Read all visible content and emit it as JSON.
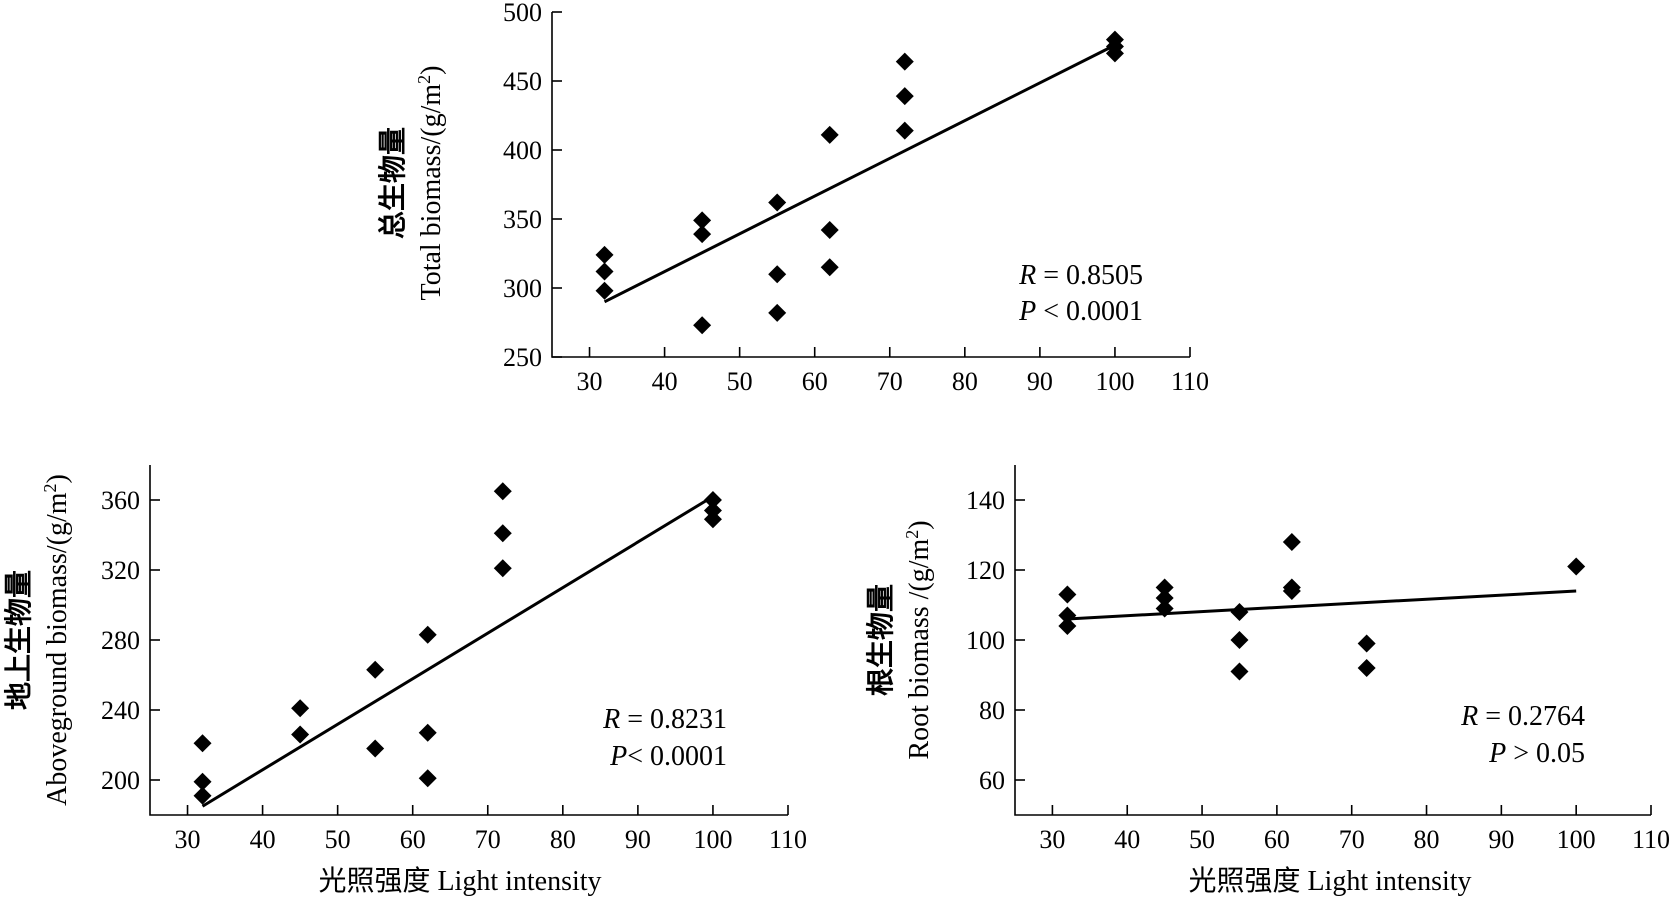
{
  "chart_data": [
    {
      "type": "scatter",
      "title": "",
      "xlabel": "",
      "ylabel_zh": "总生物量",
      "ylabel_en": "Total biomass/(g/m",
      "ylabel_sup": "2",
      "ylabel_end": ")",
      "xlim": [
        25,
        110
      ],
      "ylim": [
        250,
        500
      ],
      "xticks": [
        30,
        40,
        50,
        60,
        70,
        80,
        90,
        100,
        110
      ],
      "yticks": [
        250,
        300,
        350,
        400,
        450,
        500
      ],
      "points": [
        [
          32,
          324
        ],
        [
          32,
          312
        ],
        [
          32,
          298
        ],
        [
          45,
          349
        ],
        [
          45,
          339
        ],
        [
          45,
          273
        ],
        [
          55,
          362
        ],
        [
          55,
          310
        ],
        [
          55,
          282
        ],
        [
          62,
          411
        ],
        [
          62,
          342
        ],
        [
          62,
          315
        ],
        [
          72,
          464
        ],
        [
          72,
          439
        ],
        [
          72,
          414
        ],
        [
          100,
          480
        ],
        [
          100,
          475
        ],
        [
          100,
          470
        ]
      ],
      "fit_line": [
        [
          32,
          290
        ],
        [
          100,
          476
        ]
      ],
      "stat_r_label": "R",
      "stat_r_value": " = 0.8505",
      "stat_p_label": "P",
      "stat_p_value": " < 0.0001"
    },
    {
      "type": "scatter",
      "title": "",
      "xlabel": "光照强度 Light intensity",
      "ylabel_zh": "地上生物量",
      "ylabel_en": "Aboveground biomass/(g/m",
      "ylabel_sup": "2",
      "ylabel_end": ")",
      "xlim": [
        25,
        110
      ],
      "ylim": [
        180,
        380
      ],
      "xticks": [
        30,
        40,
        50,
        60,
        70,
        80,
        90,
        100,
        110
      ],
      "yticks": [
        200,
        240,
        280,
        320,
        360
      ],
      "points": [
        [
          32,
          221
        ],
        [
          32,
          199
        ],
        [
          32,
          191
        ],
        [
          45,
          241
        ],
        [
          45,
          226
        ],
        [
          55,
          263
        ],
        [
          55,
          218
        ],
        [
          62,
          283
        ],
        [
          62,
          227
        ],
        [
          62,
          201
        ],
        [
          72,
          365
        ],
        [
          72,
          341
        ],
        [
          72,
          321
        ],
        [
          100,
          360
        ],
        [
          100,
          354
        ],
        [
          100,
          349
        ]
      ],
      "fit_line": [
        [
          32,
          185
        ],
        [
          100,
          362
        ]
      ],
      "stat_r_label": "R",
      "stat_r_value": " = 0.8231",
      "stat_p_label": "P",
      "stat_p_value": "< 0.0001"
    },
    {
      "type": "scatter",
      "title": "",
      "xlabel": "光照强度 Light intensity",
      "ylabel_zh": "根生物量",
      "ylabel_en": " /(g/m",
      "ylabel_en_prefix": "Root biomass",
      "ylabel_sup": "2",
      "ylabel_end": ")",
      "xlim": [
        25,
        110
      ],
      "ylim": [
        50,
        150
      ],
      "xticks": [
        30,
        40,
        50,
        60,
        70,
        80,
        90,
        100,
        110
      ],
      "yticks": [
        60,
        80,
        100,
        120,
        140
      ],
      "points": [
        [
          32,
          113
        ],
        [
          32,
          107
        ],
        [
          32,
          104
        ],
        [
          45,
          115
        ],
        [
          45,
          112
        ],
        [
          45,
          109
        ],
        [
          55,
          108
        ],
        [
          55,
          100
        ],
        [
          55,
          91
        ],
        [
          62,
          128
        ],
        [
          62,
          115
        ],
        [
          62,
          114
        ],
        [
          72,
          99
        ],
        [
          72,
          92
        ],
        [
          100,
          121
        ]
      ],
      "fit_line": [
        [
          32,
          106
        ],
        [
          100,
          114
        ]
      ],
      "stat_r_label": "R",
      "stat_r_value": " = 0.2764",
      "stat_p_label": "P",
      "stat_p_value": " > 0.05"
    }
  ]
}
